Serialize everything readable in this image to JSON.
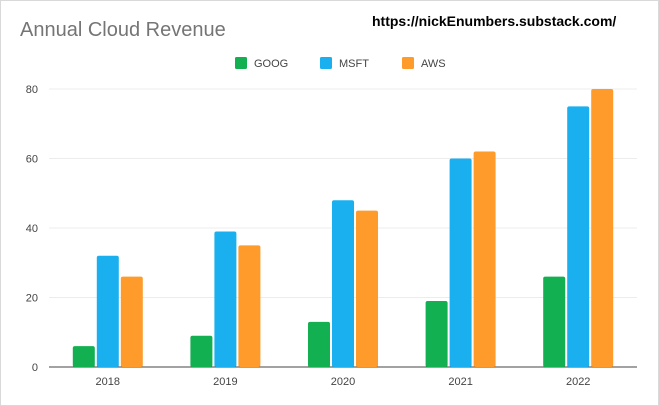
{
  "header": {
    "title": "Annual Cloud Revenue",
    "source_url": "https://nickEnumbers.substack.com/"
  },
  "chart_data": {
    "type": "bar",
    "title": "Annual Cloud Revenue",
    "xlabel": "",
    "ylabel": "",
    "categories": [
      "2018",
      "2019",
      "2020",
      "2021",
      "2022"
    ],
    "series": [
      {
        "name": "GOOG",
        "color": "#12b050",
        "values": [
          6,
          9,
          13,
          19,
          26
        ]
      },
      {
        "name": "MSFT",
        "color": "#1ab0ef",
        "values": [
          32,
          39,
          48,
          60,
          75
        ]
      },
      {
        "name": "AWS",
        "color": "#ff9b2a",
        "values": [
          26,
          35,
          45,
          62,
          80
        ]
      }
    ],
    "ylim": [
      0,
      80
    ],
    "yticks": [
      0,
      20,
      40,
      60,
      80
    ],
    "grid": true,
    "legend_position": "top-center"
  }
}
